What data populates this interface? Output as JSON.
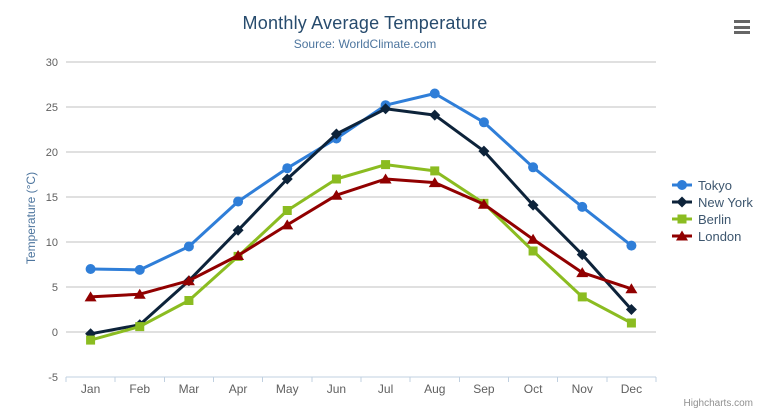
{
  "chart_data": {
    "type": "line",
    "title": "Monthly Average Temperature",
    "subtitle": "Source: WorldClimate.com",
    "categories": [
      "Jan",
      "Feb",
      "Mar",
      "Apr",
      "May",
      "Jun",
      "Jul",
      "Aug",
      "Sep",
      "Oct",
      "Nov",
      "Dec"
    ],
    "series": [
      {
        "name": "Tokyo",
        "color": "#2f7ed8",
        "marker": "circle",
        "values": [
          7.0,
          6.9,
          9.5,
          14.5,
          18.2,
          21.5,
          25.2,
          26.5,
          23.3,
          18.3,
          13.9,
          9.6
        ]
      },
      {
        "name": "New York",
        "color": "#0d233a",
        "marker": "diamond",
        "values": [
          -0.2,
          0.8,
          5.7,
          11.3,
          17.0,
          22.0,
          24.8,
          24.1,
          20.1,
          14.1,
          8.6,
          2.5
        ]
      },
      {
        "name": "Berlin",
        "color": "#8bbc21",
        "marker": "square",
        "values": [
          -0.9,
          0.6,
          3.5,
          8.4,
          13.5,
          17.0,
          18.6,
          17.9,
          14.3,
          9.0,
          3.9,
          1.0
        ]
      },
      {
        "name": "London",
        "color": "#910000",
        "marker": "triangle",
        "values": [
          3.9,
          4.2,
          5.7,
          8.5,
          11.9,
          15.2,
          17.0,
          16.6,
          14.2,
          10.3,
          6.6,
          4.8
        ]
      }
    ],
    "xlabel": "",
    "ylabel": "Temperature (°C)",
    "ylim": [
      -5,
      30
    ],
    "yticks": [
      -5,
      0,
      5,
      10,
      15,
      20,
      25,
      30
    ],
    "grid": true,
    "legend_position": "right"
  },
  "export_menu": {
    "icon": "hamburger-icon"
  },
  "credits": {
    "label": "Highcharts.com"
  },
  "colors": {
    "background": "#ffffff",
    "title": "#274b6d",
    "subtitle": "#4d759e",
    "axis_title": "#4d759e",
    "axis_label": "#606060",
    "gridline": "#C0C0C0",
    "axis_line": "#C0D0E0",
    "legend_text": "#3E576F",
    "credits": "#909090",
    "menu_icon": "#666666"
  }
}
